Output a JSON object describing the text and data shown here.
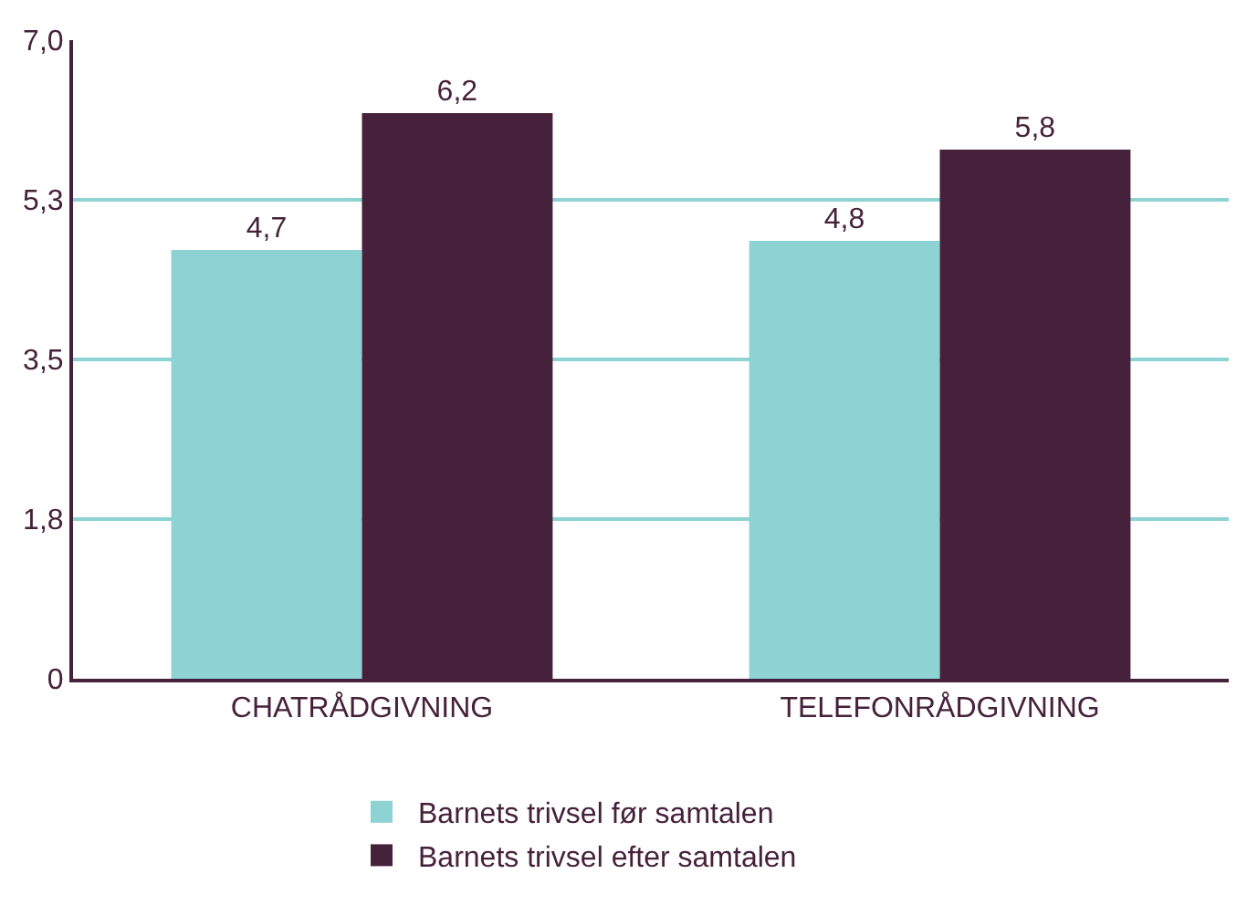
{
  "chart_data": {
    "type": "bar",
    "categories": [
      "CHATRÅDGIVNING",
      "TELEFONRÅDGIVNING"
    ],
    "series": [
      {
        "name": "Barnets trivsel før samtalen",
        "color": "#8dd3d3",
        "values": [
          4.7,
          4.8
        ],
        "value_labels": [
          "4,7",
          "4,8"
        ]
      },
      {
        "name": "Barnets trivsel efter samtalen",
        "color": "#46213b",
        "values": [
          6.2,
          5.8
        ],
        "value_labels": [
          "6,2",
          "5,8"
        ]
      }
    ],
    "ylim": [
      0,
      7
    ],
    "yticks": [
      {
        "value": 0,
        "label": "0"
      },
      {
        "value": 1.75,
        "label": "1,8"
      },
      {
        "value": 3.5,
        "label": "3,5"
      },
      {
        "value": 5.25,
        "label": "5,3"
      },
      {
        "value": 7,
        "label": "7,0"
      }
    ],
    "grid": "y",
    "legend": "bottom"
  }
}
